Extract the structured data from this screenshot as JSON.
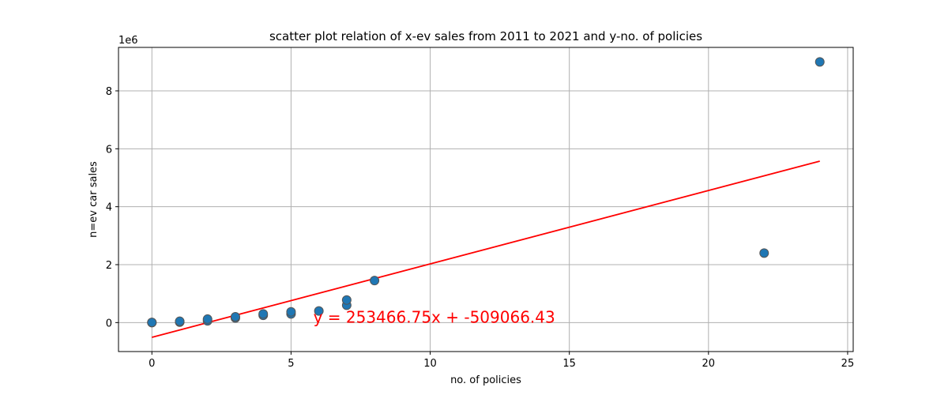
{
  "chart_data": {
    "type": "scatter",
    "title": "scatter plot relation of x-ev sales from 2011 to 2021 and y-no. of policies",
    "xlabel": "no. of policies",
    "ylabel": "n=ev car sales",
    "y_offset_label": "1e6",
    "y_scale_factor": 1000000,
    "xlim": [
      -1.2,
      25.2
    ],
    "ylim": [
      -1000000,
      9500000
    ],
    "xticks": [
      0,
      5,
      10,
      15,
      20,
      25
    ],
    "yticks": [
      0,
      2000000,
      4000000,
      6000000,
      8000000
    ],
    "xtick_labels": [
      "0",
      "5",
      "10",
      "15",
      "20",
      "25"
    ],
    "ytick_labels": [
      "0",
      "2",
      "4",
      "6",
      "8"
    ],
    "grid": true,
    "points": [
      {
        "x": 0,
        "y": 0
      },
      {
        "x": 0,
        "y": 5000
      },
      {
        "x": 1,
        "y": 15000
      },
      {
        "x": 1,
        "y": 30000
      },
      {
        "x": 1,
        "y": 45000
      },
      {
        "x": 2,
        "y": 60000
      },
      {
        "x": 2,
        "y": 120000
      },
      {
        "x": 3,
        "y": 160000
      },
      {
        "x": 3,
        "y": 200000
      },
      {
        "x": 4,
        "y": 250000
      },
      {
        "x": 4,
        "y": 300000
      },
      {
        "x": 5,
        "y": 300000
      },
      {
        "x": 5,
        "y": 370000
      },
      {
        "x": 6,
        "y": 400000
      },
      {
        "x": 7,
        "y": 600000
      },
      {
        "x": 7,
        "y": 780000
      },
      {
        "x": 8,
        "y": 1450000
      },
      {
        "x": 22,
        "y": 2400000
      },
      {
        "x": 24,
        "y": 9000000
      }
    ],
    "fit_line": {
      "slope": 253466.75,
      "intercept": -509066.43,
      "x_range": [
        0,
        24
      ],
      "color": "#ff0000"
    },
    "equation_label": "y = 253466.75x + -509066.43",
    "equation_position": {
      "x": 5.8,
      "y": 0
    },
    "marker_color": "#1f77b4",
    "marker_edge_color": "#555555"
  }
}
